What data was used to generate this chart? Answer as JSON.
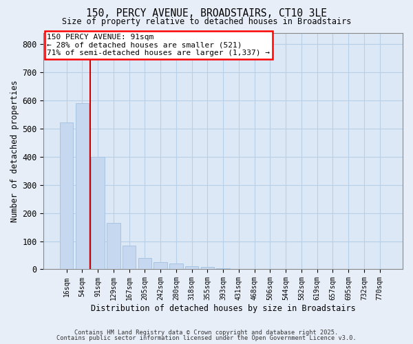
{
  "title1": "150, PERCY AVENUE, BROADSTAIRS, CT10 3LE",
  "title2": "Size of property relative to detached houses in Broadstairs",
  "xlabel": "Distribution of detached houses by size in Broadstairs",
  "ylabel": "Number of detached properties",
  "bar_labels": [
    "16sqm",
    "54sqm",
    "91sqm",
    "129sqm",
    "167sqm",
    "205sqm",
    "242sqm",
    "280sqm",
    "318sqm",
    "355sqm",
    "393sqm",
    "431sqm",
    "468sqm",
    "506sqm",
    "544sqm",
    "582sqm",
    "619sqm",
    "657sqm",
    "695sqm",
    "732sqm",
    "770sqm"
  ],
  "bar_values": [
    522,
    590,
    398,
    165,
    84,
    40,
    25,
    20,
    10,
    8,
    4,
    1,
    0,
    0,
    0,
    0,
    0,
    0,
    0,
    0,
    0
  ],
  "bar_color": "#c5d8ef",
  "bar_edge_color": "#a8c4e0",
  "red_line_color": "#cc0000",
  "ylim": [
    0,
    840
  ],
  "yticks": [
    0,
    100,
    200,
    300,
    400,
    500,
    600,
    700,
    800
  ],
  "annotation_text": "150 PERCY AVENUE: 91sqm\n← 28% of detached houses are smaller (521)\n71% of semi-detached houses are larger (1,337) →",
  "footer1": "Contains HM Land Registry data © Crown copyright and database right 2025.",
  "footer2": "Contains public sector information licensed under the Open Government Licence v3.0.",
  "bg_color": "#e8eef8",
  "plot_bg_color": "#dce8f5",
  "grid_color": "#b8cfe8"
}
